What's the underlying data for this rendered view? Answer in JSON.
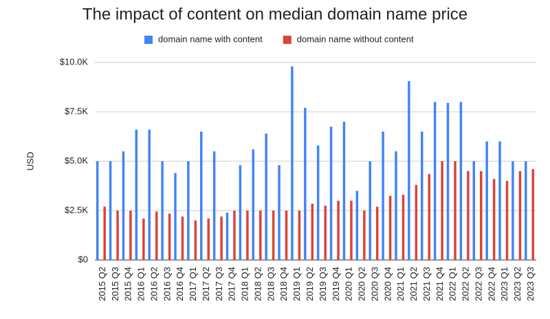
{
  "chart_data": {
    "type": "bar",
    "title": "The impact of content on median domain name price",
    "ylabel": "USD",
    "categories": [
      "2015 Q2",
      "2015 Q3",
      "2015 Q4",
      "2016 Q1",
      "2016 Q2",
      "2016 Q3",
      "2016 Q4",
      "2017 Q1",
      "2017 Q2",
      "2017 Q3",
      "2017 Q4",
      "2018 Q1",
      "2018 Q2",
      "2018 Q3",
      "2018 Q4",
      "2019 Q1",
      "2019 Q2",
      "2019 Q3",
      "2019 Q4",
      "2020 Q1",
      "2020 Q2",
      "2020 Q3",
      "2020 Q4",
      "2021 Q1",
      "2021 Q2",
      "2021 Q3",
      "2021 Q4",
      "2022 Q1",
      "2022 Q2",
      "2022 Q3",
      "2022 Q4",
      "2023 Q1",
      "2023 Q2",
      "2023 Q3"
    ],
    "series": [
      {
        "name": "domain name with content",
        "color": "#4285f4",
        "values": [
          5000,
          5000,
          5500,
          6600,
          6600,
          5000,
          4400,
          5000,
          6500,
          5500,
          2400,
          4800,
          5600,
          6400,
          4800,
          9800,
          7700,
          5800,
          6750,
          7000,
          3500,
          5000,
          6500,
          5500,
          9050,
          6500,
          8000,
          7950,
          8000,
          5000,
          6000,
          6000,
          5000,
          5000
        ]
      },
      {
        "name": "domain name without content",
        "color": "#db4437",
        "values": [
          2700,
          2500,
          2500,
          2100,
          2450,
          2350,
          2200,
          2000,
          2100,
          2200,
          2500,
          2500,
          2500,
          2500,
          2500,
          2500,
          2850,
          2750,
          3000,
          3000,
          2500,
          2700,
          3250,
          3300,
          3800,
          4350,
          5000,
          5000,
          4500,
          4500,
          4100,
          4000,
          4500,
          4600
        ]
      }
    ],
    "ylim": [
      0,
      10000
    ],
    "yticks": [
      {
        "value": 0,
        "label": "$0"
      },
      {
        "value": 2500,
        "label": "$2.5K"
      },
      {
        "value": 5000,
        "label": "$5.0K"
      },
      {
        "value": 7500,
        "label": "$7.5K"
      },
      {
        "value": 10000,
        "label": "$10.0K"
      }
    ],
    "grid": true,
    "legend": "top"
  }
}
